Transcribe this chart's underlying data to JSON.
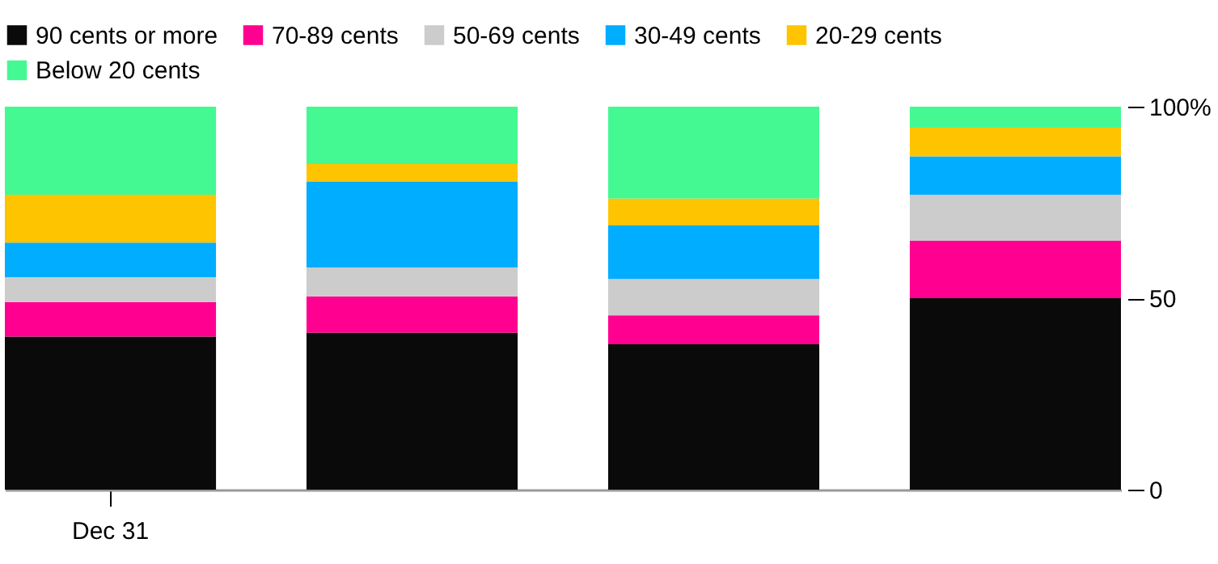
{
  "chart_data": {
    "type": "bar",
    "stacked": true,
    "categories": [
      "Dec 31",
      null,
      null,
      null
    ],
    "series": [
      {
        "name": "90 cents or more",
        "color": "#0a0a0a",
        "values": [
          40,
          41,
          38,
          50
        ]
      },
      {
        "name": "70-89 cents",
        "color": "#ff0090",
        "values": [
          9,
          9.5,
          7.5,
          15
        ]
      },
      {
        "name": "50-69 cents",
        "color": "#cccccc",
        "values": [
          6.5,
          7.5,
          9.5,
          12
        ]
      },
      {
        "name": "30-49 cents",
        "color": "#00adff",
        "values": [
          9,
          22.5,
          14,
          10
        ]
      },
      {
        "name": "20-29 cents",
        "color": "#ffc400",
        "values": [
          12.5,
          4.5,
          7,
          7.5
        ]
      },
      {
        "name": "Below 20 cents",
        "color": "#44f992",
        "values": [
          23,
          15,
          24,
          5.5
        ]
      }
    ],
    "ylim": [
      0,
      100
    ],
    "yticks": [
      0,
      50,
      {
        "value": 100,
        "label": "100%"
      }
    ],
    "legend": "top",
    "grid": false
  }
}
